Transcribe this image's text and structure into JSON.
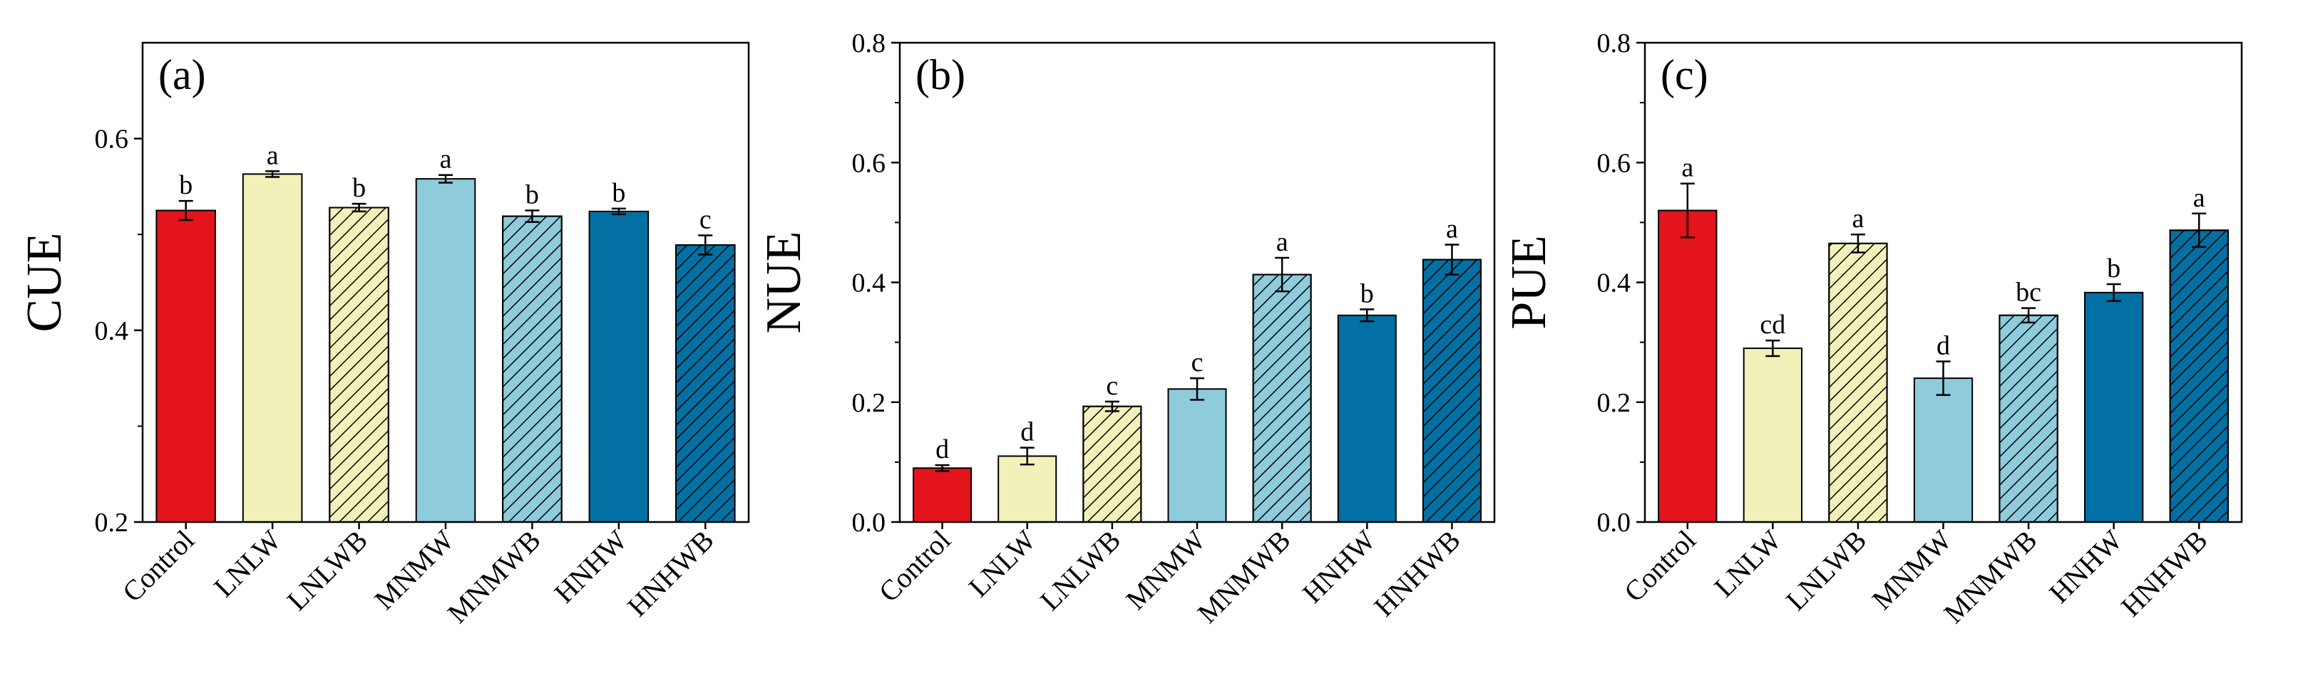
{
  "chart_data": [
    {
      "type": "bar",
      "panel_label": "(a)",
      "ylabel": "CUE",
      "ylim": [
        0.2,
        0.7
      ],
      "yticks": [
        "0.2",
        "0.4",
        "0.6"
      ],
      "categories": [
        "Control",
        "LNLW",
        "LNLWB",
        "MNMW",
        "MNMWB",
        "HNHW",
        "HNHWB"
      ],
      "values": [
        0.525,
        0.563,
        0.528,
        0.558,
        0.519,
        0.524,
        0.489
      ],
      "errors": [
        0.01,
        0.003,
        0.004,
        0.004,
        0.006,
        0.003,
        0.01
      ],
      "significance": [
        "b",
        "a",
        "b",
        "a",
        "b",
        "b",
        "c"
      ]
    },
    {
      "type": "bar",
      "panel_label": "(b)",
      "ylabel": "NUE",
      "ylim": [
        0.0,
        0.8
      ],
      "yticks": [
        "0.0",
        "0.2",
        "0.4",
        "0.6",
        "0.8"
      ],
      "categories": [
        "Control",
        "LNLW",
        "LNLWB",
        "MNMW",
        "MNMWB",
        "HNHW",
        "HNHWB"
      ],
      "values": [
        0.09,
        0.11,
        0.193,
        0.222,
        0.413,
        0.345,
        0.438
      ],
      "errors": [
        0.005,
        0.014,
        0.008,
        0.018,
        0.028,
        0.01,
        0.025
      ],
      "significance": [
        "d",
        "d",
        "c",
        "c",
        "a",
        "b",
        "a"
      ]
    },
    {
      "type": "bar",
      "panel_label": "(c)",
      "ylabel": "PUE",
      "ylim": [
        0.0,
        0.8
      ],
      "yticks": [
        "0.0",
        "0.2",
        "0.4",
        "0.6",
        "0.8"
      ],
      "categories": [
        "Control",
        "LNLW",
        "LNLWB",
        "MNMW",
        "MNMWB",
        "HNHW",
        "HNHWB"
      ],
      "values": [
        0.52,
        0.29,
        0.465,
        0.24,
        0.345,
        0.383,
        0.487
      ],
      "errors": [
        0.045,
        0.013,
        0.015,
        0.028,
        0.012,
        0.014,
        0.028
      ],
      "significance": [
        "a",
        "cd",
        "a",
        "d",
        "bc",
        "b",
        "a"
      ]
    }
  ],
  "series_style": {
    "Control": {
      "fill": "#e3141c",
      "hatch": false
    },
    "LNLW": {
      "fill": "#f2f1b9",
      "hatch": false
    },
    "LNLWB": {
      "fill": "#f2f1b9",
      "hatch": true
    },
    "MNMW": {
      "fill": "#8ecbdb",
      "hatch": false
    },
    "MNMWB": {
      "fill": "#8ecbdb",
      "hatch": true
    },
    "HNHW": {
      "fill": "#0370a3",
      "hatch": false
    },
    "HNHWB": {
      "fill": "#0370a3",
      "hatch": true
    }
  }
}
